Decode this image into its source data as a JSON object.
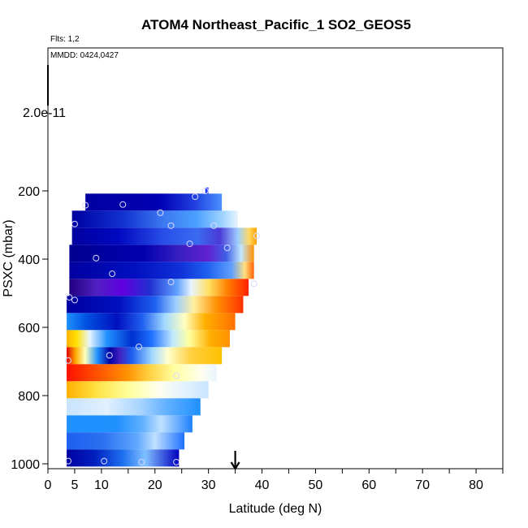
{
  "chart_data": {
    "type": "heatmap",
    "title": "ATOM4 Northeast_Pacific_1 SO2_GEOS5",
    "subtitle_flights": "Flts: 1,2",
    "subtitle_dates": "MMDD: 0424,0427",
    "xlabel": "Latitude (deg N)",
    "ylabel": "PSXC (mbar)",
    "colorbar_max_label": "2.0e-11",
    "xlim": [
      0,
      85
    ],
    "ylim": [
      1000,
      0
    ],
    "xticks": [
      0,
      5,
      10,
      20,
      30,
      40,
      50,
      60,
      70,
      80
    ],
    "yticks": [
      200,
      400,
      600,
      800,
      1000
    ],
    "xtick_marks": [
      0,
      5,
      10,
      15,
      20,
      25,
      30,
      35,
      40,
      45,
      50,
      55,
      60,
      65,
      70,
      75,
      80,
      85
    ],
    "arrow_latitude": 35,
    "grid": false,
    "colors": {
      "lowest": "#00008b",
      "low": "#0000cd",
      "mid_low": "#1e90ff",
      "mid": "#e0f0ff",
      "mid_high": "#ffff99",
      "high": "#ffa500",
      "highest": "#ff0000",
      "purple": "#8000ff"
    },
    "bands": [
      {
        "p_top": 190,
        "p_bot": 208,
        "x0": 29.4,
        "x1": 30.0,
        "stops": [
          [
            0,
            "#1e3cff"
          ],
          [
            1,
            "#1e3cff"
          ]
        ]
      },
      {
        "p_top": 208,
        "p_bot": 258,
        "x0": 7.0,
        "x1": 32.5,
        "stops": [
          [
            0,
            "#0000a0"
          ],
          [
            0.55,
            "#0000b4"
          ],
          [
            0.8,
            "#2040e0"
          ],
          [
            1,
            "#4a90ff"
          ]
        ]
      },
      {
        "p_top": 258,
        "p_bot": 308,
        "x0": 4.5,
        "x1": 35.5,
        "stops": [
          [
            0,
            "#0000a0"
          ],
          [
            0.3,
            "#1030d0"
          ],
          [
            0.55,
            "#3c78f0"
          ],
          [
            0.75,
            "#4aa0ff"
          ],
          [
            0.92,
            "#a8d8ff"
          ],
          [
            1,
            "#e8f4ff"
          ]
        ]
      },
      {
        "p_top": 308,
        "p_bot": 358,
        "x0": 4.5,
        "x1": 39.0,
        "stops": [
          [
            0,
            "#0000a0"
          ],
          [
            0.25,
            "#0008c0"
          ],
          [
            0.5,
            "#2850e8"
          ],
          [
            0.68,
            "#3a6af0"
          ],
          [
            0.8,
            "#4a3ad8"
          ],
          [
            0.9,
            "#a0d0ff"
          ],
          [
            0.96,
            "#ffd860"
          ],
          [
            1,
            "#ffa000"
          ]
        ]
      },
      {
        "p_top": 358,
        "p_bot": 408,
        "x0": 4.0,
        "x1": 38.5,
        "stops": [
          [
            0,
            "#000090"
          ],
          [
            0.4,
            "#0000b0"
          ],
          [
            0.6,
            "#3a20c0"
          ],
          [
            0.75,
            "#6020d0"
          ],
          [
            0.85,
            "#4060e8"
          ],
          [
            0.93,
            "#c0e8ff"
          ],
          [
            1,
            "#ff9000"
          ]
        ]
      },
      {
        "p_top": 408,
        "p_bot": 458,
        "x0": 4.0,
        "x1": 38.5,
        "stops": [
          [
            0,
            "#0000a0"
          ],
          [
            0.35,
            "#0010c0"
          ],
          [
            0.6,
            "#1030d8"
          ],
          [
            0.75,
            "#1e60f0"
          ],
          [
            0.88,
            "#60a0ff"
          ],
          [
            0.95,
            "#ffe080"
          ],
          [
            1,
            "#ff6000"
          ]
        ]
      },
      {
        "p_top": 458,
        "p_bot": 508,
        "x0": 4.0,
        "x1": 37.5,
        "stops": [
          [
            0,
            "#200080"
          ],
          [
            0.15,
            "#5020c0"
          ],
          [
            0.3,
            "#6000e0"
          ],
          [
            0.45,
            "#2030d0"
          ],
          [
            0.6,
            "#60a0ff"
          ],
          [
            0.68,
            "#e8f4ff"
          ],
          [
            0.78,
            "#ffe060"
          ],
          [
            0.88,
            "#ff8000"
          ],
          [
            1,
            "#ff2000"
          ]
        ]
      },
      {
        "p_top": 508,
        "p_bot": 558,
        "x0": 3.5,
        "x1": 36.5,
        "stops": [
          [
            0,
            "#0000a0"
          ],
          [
            0.3,
            "#0010c0"
          ],
          [
            0.5,
            "#1e60f0"
          ],
          [
            0.62,
            "#a0d0ff"
          ],
          [
            0.72,
            "#fff0a0"
          ],
          [
            0.85,
            "#ff9000"
          ],
          [
            1,
            "#ff3000"
          ]
        ]
      },
      {
        "p_top": 558,
        "p_bot": 608,
        "x0": 3.5,
        "x1": 35.0,
        "stops": [
          [
            0,
            "#1e90ff"
          ],
          [
            0.12,
            "#0050e0"
          ],
          [
            0.3,
            "#0010c0"
          ],
          [
            0.45,
            "#2060f0"
          ],
          [
            0.58,
            "#a0d8ff"
          ],
          [
            0.7,
            "#ffffc0"
          ],
          [
            0.82,
            "#ffb000"
          ],
          [
            1,
            "#ff7000"
          ]
        ]
      },
      {
        "p_top": 608,
        "p_bot": 658,
        "x0": 3.5,
        "x1": 34.0,
        "stops": [
          [
            0,
            "#ffb000"
          ],
          [
            0.06,
            "#ffe000"
          ],
          [
            0.14,
            "#e8f4ff"
          ],
          [
            0.25,
            "#1e90ff"
          ],
          [
            0.4,
            "#0030d0"
          ],
          [
            0.52,
            "#1e70ff"
          ],
          [
            0.65,
            "#c0e8ff"
          ],
          [
            0.75,
            "#ffffa0"
          ],
          [
            0.88,
            "#ffb000"
          ],
          [
            1,
            "#ff9000"
          ]
        ]
      },
      {
        "p_top": 658,
        "p_bot": 708,
        "x0": 3.5,
        "x1": 32.5,
        "stops": [
          [
            0,
            "#e00000"
          ],
          [
            0.06,
            "#ffb000"
          ],
          [
            0.12,
            "#ffffc0"
          ],
          [
            0.2,
            "#1e90ff"
          ],
          [
            0.28,
            "#0000a0"
          ],
          [
            0.34,
            "#4020c0"
          ],
          [
            0.42,
            "#1e60f0"
          ],
          [
            0.55,
            "#a0d8ff"
          ],
          [
            0.65,
            "#ffffd0"
          ],
          [
            0.8,
            "#ffd040"
          ],
          [
            1,
            "#ffc000"
          ]
        ]
      },
      {
        "p_top": 708,
        "p_bot": 758,
        "x0": 3.5,
        "x1": 31.5,
        "stops": [
          [
            0,
            "#ff1000"
          ],
          [
            0.2,
            "#ff5000"
          ],
          [
            0.4,
            "#ff9000"
          ],
          [
            0.55,
            "#ffd040"
          ],
          [
            0.72,
            "#ffffa0"
          ],
          [
            0.9,
            "#fffff0"
          ],
          [
            1,
            "#e8f4ff"
          ]
        ]
      },
      {
        "p_top": 758,
        "p_bot": 808,
        "x0": 3.5,
        "x1": 30.0,
        "stops": [
          [
            0,
            "#ffb000"
          ],
          [
            0.2,
            "#ffe040"
          ],
          [
            0.45,
            "#ffffa0"
          ],
          [
            0.65,
            "#fffff0"
          ],
          [
            0.85,
            "#e0f0ff"
          ],
          [
            1,
            "#c8e4ff"
          ]
        ]
      },
      {
        "p_top": 808,
        "p_bot": 858,
        "x0": 3.5,
        "x1": 28.5,
        "stops": [
          [
            0,
            "#c8e4ff"
          ],
          [
            0.3,
            "#e0f0ff"
          ],
          [
            0.55,
            "#a8d4ff"
          ],
          [
            0.75,
            "#60b0ff"
          ],
          [
            1,
            "#1e90ff"
          ]
        ]
      },
      {
        "p_top": 858,
        "p_bot": 908,
        "x0": 3.5,
        "x1": 27.0,
        "stops": [
          [
            0,
            "#1e90ff"
          ],
          [
            0.4,
            "#2090ff"
          ],
          [
            0.6,
            "#60b0ff"
          ],
          [
            0.75,
            "#c0e0ff"
          ],
          [
            1,
            "#1e80ff"
          ]
        ]
      },
      {
        "p_top": 908,
        "p_bot": 958,
        "x0": 3.5,
        "x1": 25.5,
        "stops": [
          [
            0,
            "#1e60f0"
          ],
          [
            0.3,
            "#2a70f0"
          ],
          [
            0.6,
            "#60a8ff"
          ],
          [
            0.75,
            "#c0e0ff"
          ],
          [
            1,
            "#1e70ff"
          ]
        ]
      },
      {
        "p_top": 958,
        "p_bot": 1008,
        "x0": 3.5,
        "x1": 24.5,
        "stops": [
          [
            0,
            "#0000a0"
          ],
          [
            0.25,
            "#0020c0"
          ],
          [
            0.5,
            "#1e70f0"
          ],
          [
            0.7,
            "#80c0ff"
          ],
          [
            1,
            "#0000c0"
          ]
        ]
      }
    ],
    "markers": [
      {
        "lat": 29.4,
        "p": 200
      },
      {
        "lat": 27.5,
        "p": 217
      },
      {
        "lat": 7.0,
        "p": 242
      },
      {
        "lat": 14.0,
        "p": 240
      },
      {
        "lat": 21.0,
        "p": 264
      },
      {
        "lat": 5.0,
        "p": 297
      },
      {
        "lat": 23.0,
        "p": 302
      },
      {
        "lat": 31.0,
        "p": 302
      },
      {
        "lat": 39.0,
        "p": 332
      },
      {
        "lat": 26.5,
        "p": 355
      },
      {
        "lat": 33.5,
        "p": 367
      },
      {
        "lat": 9.0,
        "p": 397
      },
      {
        "lat": 12.0,
        "p": 443
      },
      {
        "lat": 23.0,
        "p": 467
      },
      {
        "lat": 38.5,
        "p": 472
      },
      {
        "lat": 4.0,
        "p": 512
      },
      {
        "lat": 5.0,
        "p": 520
      },
      {
        "lat": 17.0,
        "p": 657
      },
      {
        "lat": 11.5,
        "p": 682
      },
      {
        "lat": 3.8,
        "p": 697
      },
      {
        "lat": 24.0,
        "p": 742
      },
      {
        "lat": 3.8,
        "p": 992
      },
      {
        "lat": 10.5,
        "p": 992
      },
      {
        "lat": 17.5,
        "p": 995
      },
      {
        "lat": 24.0,
        "p": 995
      }
    ]
  }
}
